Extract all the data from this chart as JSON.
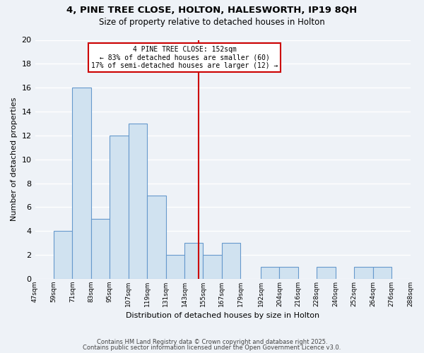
{
  "title1": "4, PINE TREE CLOSE, HOLTON, HALESWORTH, IP19 8QH",
  "title2": "Size of property relative to detached houses in Holton",
  "xlabel": "Distribution of detached houses by size in Holton",
  "ylabel": "Number of detached properties",
  "bin_edges": [
    47,
    59,
    71,
    83,
    95,
    107,
    119,
    131,
    143,
    155,
    167,
    179,
    192,
    204,
    216,
    228,
    240,
    252,
    264,
    276,
    288
  ],
  "counts": [
    0,
    4,
    16,
    5,
    12,
    13,
    7,
    2,
    3,
    2,
    3,
    0,
    1,
    1,
    0,
    1,
    0,
    1,
    1,
    0
  ],
  "bar_color": "#d0e2f0",
  "bar_edge_color": "#6699cc",
  "property_size": 152,
  "vline_color": "#cc0000",
  "annotation_line1": "4 PINE TREE CLOSE: 152sqm",
  "annotation_line2": "← 83% of detached houses are smaller (60)",
  "annotation_line3": "17% of semi-detached houses are larger (12) →",
  "annotation_box_color": "#ffffff",
  "annotation_box_edge": "#cc0000",
  "ylim": [
    0,
    20
  ],
  "yticks": [
    0,
    2,
    4,
    6,
    8,
    10,
    12,
    14,
    16,
    18,
    20
  ],
  "tick_labels": [
    "47sqm",
    "59sqm",
    "71sqm",
    "83sqm",
    "95sqm",
    "107sqm",
    "119sqm",
    "131sqm",
    "143sqm",
    "155sqm",
    "167sqm",
    "179sqm",
    "192sqm",
    "204sqm",
    "216sqm",
    "228sqm",
    "240sqm",
    "252sqm",
    "264sqm",
    "276sqm",
    "288sqm"
  ],
  "footer1": "Contains HM Land Registry data © Crown copyright and database right 2025.",
  "footer2": "Contains public sector information licensed under the Open Government Licence v3.0.",
  "bg_color": "#eef2f7",
  "grid_color": "#ffffff"
}
